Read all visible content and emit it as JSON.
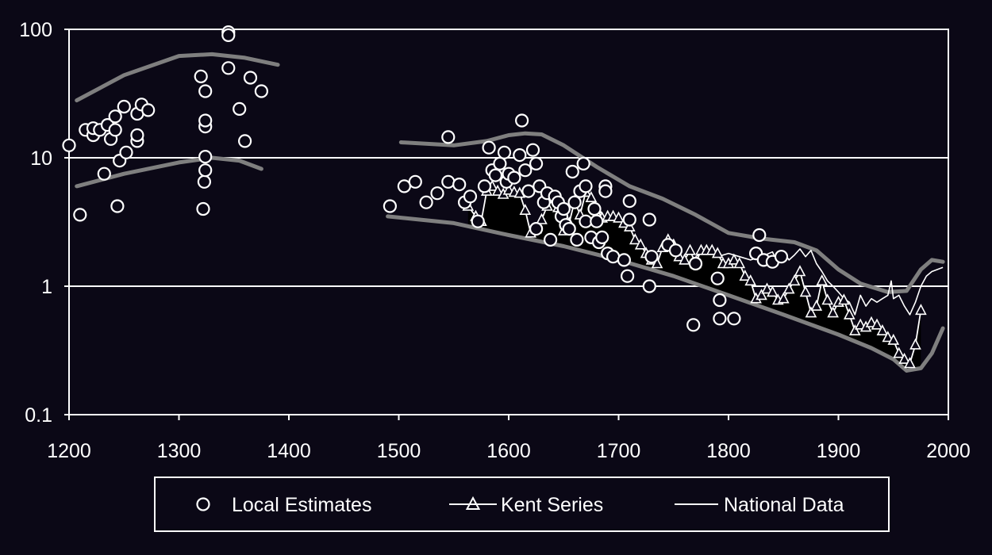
{
  "chart_data": {
    "type": "scatter",
    "title": "",
    "xlabel": "",
    "ylabel": "",
    "xlim": [
      1200,
      2000
    ],
    "ylim": [
      0.1,
      100
    ],
    "yscale": "log",
    "grid": "horizontal",
    "legend_placement": "bottom",
    "x_ticks": [
      "1200",
      "1300",
      "1400",
      "1500",
      "1600",
      "1700",
      "1800",
      "1900",
      "2000"
    ],
    "y_ticks": [
      {
        "value": 0.1,
        "label": "0.1"
      },
      {
        "value": 1,
        "label": "1"
      },
      {
        "value": 10,
        "label": "10"
      },
      {
        "value": 100,
        "label": "100"
      }
    ],
    "colors": {
      "background": "#0b0816",
      "foreground": "#ffffff",
      "band": "#7f7f7f"
    },
    "legend": [
      {
        "marker": "circle",
        "label": "Local Estimates"
      },
      {
        "marker": "triangle-line",
        "label": "Kent Series"
      },
      {
        "marker": "line",
        "label": "National Data"
      }
    ],
    "series": [
      {
        "name": "Local Estimates",
        "kind": "scatter",
        "marker": "circle",
        "points": [
          [
            1200,
            12.5
          ],
          [
            1210,
            3.6
          ],
          [
            1215,
            16.5
          ],
          [
            1222,
            15
          ],
          [
            1222,
            17
          ],
          [
            1228,
            16.5
          ],
          [
            1232,
            7.5
          ],
          [
            1235,
            18
          ],
          [
            1238,
            14
          ],
          [
            1242,
            21
          ],
          [
            1242,
            16.5
          ],
          [
            1244,
            4.2
          ],
          [
            1246,
            9.5
          ],
          [
            1250,
            25
          ],
          [
            1252,
            11
          ],
          [
            1262,
            13.5
          ],
          [
            1262,
            15
          ],
          [
            1262,
            22
          ],
          [
            1266,
            26
          ],
          [
            1272,
            23.5
          ],
          [
            1320,
            43
          ],
          [
            1322,
            4.0
          ],
          [
            1323,
            6.5
          ],
          [
            1324,
            8.0
          ],
          [
            1324,
            10.2
          ],
          [
            1324,
            17.5
          ],
          [
            1324,
            19.5
          ],
          [
            1324,
            33
          ],
          [
            1345,
            95
          ],
          [
            1345,
            90
          ],
          [
            1345,
            50
          ],
          [
            1355,
            24
          ],
          [
            1360,
            13.5
          ],
          [
            1365,
            42
          ],
          [
            1375,
            33
          ],
          [
            1492,
            4.2
          ],
          [
            1505,
            6.0
          ],
          [
            1515,
            6.5
          ],
          [
            1525,
            4.5
          ],
          [
            1535,
            5.3
          ],
          [
            1545,
            14.5
          ],
          [
            1545,
            6.5
          ],
          [
            1555,
            6.2
          ],
          [
            1560,
            4.5
          ],
          [
            1565,
            5.0
          ],
          [
            1572,
            3.2
          ],
          [
            1578,
            6.0
          ],
          [
            1582,
            12.0
          ],
          [
            1585,
            8.0
          ],
          [
            1588,
            7.3
          ],
          [
            1592,
            9.0
          ],
          [
            1596,
            11.0
          ],
          [
            1598,
            6.5
          ],
          [
            1600,
            7.5
          ],
          [
            1605,
            7.0
          ],
          [
            1610,
            10.5
          ],
          [
            1612,
            19.5
          ],
          [
            1615,
            8.0
          ],
          [
            1618,
            5.5
          ],
          [
            1622,
            11.5
          ],
          [
            1625,
            9.0
          ],
          [
            1625,
            2.8
          ],
          [
            1628,
            6.0
          ],
          [
            1632,
            4.5
          ],
          [
            1635,
            5.3
          ],
          [
            1638,
            2.3
          ],
          [
            1642,
            5.0
          ],
          [
            1645,
            4.5
          ],
          [
            1648,
            3.5
          ],
          [
            1650,
            4.0
          ],
          [
            1652,
            3.0
          ],
          [
            1655,
            2.8
          ],
          [
            1658,
            7.8
          ],
          [
            1660,
            4.5
          ],
          [
            1662,
            2.3
          ],
          [
            1665,
            5.5
          ],
          [
            1668,
            9.0
          ],
          [
            1670,
            6.0
          ],
          [
            1670,
            3.2
          ],
          [
            1675,
            2.4
          ],
          [
            1678,
            4.0
          ],
          [
            1680,
            3.2
          ],
          [
            1682,
            2.2
          ],
          [
            1685,
            2.4
          ],
          [
            1688,
            6.0
          ],
          [
            1688,
            5.5
          ],
          [
            1690,
            1.8
          ],
          [
            1695,
            1.7
          ],
          [
            1705,
            1.6
          ],
          [
            1708,
            1.2
          ],
          [
            1710,
            4.6
          ],
          [
            1710,
            3.3
          ],
          [
            1728,
            3.3
          ],
          [
            1728,
            1.0
          ],
          [
            1730,
            1.7
          ],
          [
            1745,
            2.1
          ],
          [
            1752,
            1.9
          ],
          [
            1768,
            0.5
          ],
          [
            1770,
            1.5
          ],
          [
            1790,
            1.15
          ],
          [
            1792,
            0.78
          ],
          [
            1792,
            0.56
          ],
          [
            1805,
            0.56
          ],
          [
            1825,
            1.8
          ],
          [
            1828,
            2.5
          ],
          [
            1832,
            1.6
          ],
          [
            1840,
            1.55
          ],
          [
            1848,
            1.7
          ]
        ]
      },
      {
        "name": "Kent Series",
        "kind": "line",
        "marker": "triangle",
        "points": [
          [
            1563,
            4.2
          ],
          [
            1570,
            3.5
          ],
          [
            1575,
            3.2
          ],
          [
            1580,
            5.5
          ],
          [
            1585,
            6.0
          ],
          [
            1590,
            5.5
          ],
          [
            1595,
            5.2
          ],
          [
            1600,
            5.6
          ],
          [
            1605,
            5.4
          ],
          [
            1610,
            5.3
          ],
          [
            1615,
            3.9
          ],
          [
            1620,
            2.6
          ],
          [
            1625,
            2.8
          ],
          [
            1630,
            3.3
          ],
          [
            1635,
            4.2
          ],
          [
            1640,
            4.8
          ],
          [
            1645,
            4.1
          ],
          [
            1650,
            2.7
          ],
          [
            1655,
            3.1
          ],
          [
            1660,
            4.6
          ],
          [
            1665,
            3.6
          ],
          [
            1670,
            5.4
          ],
          [
            1675,
            4.9
          ],
          [
            1680,
            4.0
          ],
          [
            1685,
            3.4
          ],
          [
            1690,
            3.5
          ],
          [
            1695,
            3.5
          ],
          [
            1700,
            3.4
          ],
          [
            1705,
            3.1
          ],
          [
            1710,
            2.9
          ],
          [
            1715,
            2.3
          ],
          [
            1720,
            2.1
          ],
          [
            1725,
            1.8
          ],
          [
            1730,
            1.6
          ],
          [
            1735,
            1.5
          ],
          [
            1740,
            2.0
          ],
          [
            1745,
            2.3
          ],
          [
            1750,
            2.1
          ],
          [
            1755,
            1.7
          ],
          [
            1760,
            1.6
          ],
          [
            1765,
            1.9
          ],
          [
            1770,
            1.5
          ],
          [
            1775,
            1.9
          ],
          [
            1780,
            1.9
          ],
          [
            1785,
            1.9
          ],
          [
            1790,
            1.8
          ],
          [
            1795,
            1.5
          ],
          [
            1800,
            1.5
          ],
          [
            1805,
            1.6
          ],
          [
            1810,
            1.5
          ],
          [
            1815,
            1.2
          ],
          [
            1820,
            1.1
          ],
          [
            1825,
            0.8
          ],
          [
            1830,
            0.85
          ],
          [
            1835,
            0.95
          ],
          [
            1840,
            0.9
          ],
          [
            1845,
            0.78
          ],
          [
            1850,
            0.8
          ],
          [
            1855,
            0.95
          ],
          [
            1860,
            1.1
          ],
          [
            1865,
            1.3
          ],
          [
            1870,
            0.9
          ],
          [
            1875,
            0.62
          ],
          [
            1880,
            0.7
          ],
          [
            1885,
            1.1
          ],
          [
            1890,
            0.78
          ],
          [
            1895,
            0.62
          ],
          [
            1900,
            0.75
          ],
          [
            1905,
            0.78
          ],
          [
            1910,
            0.6
          ],
          [
            1915,
            0.45
          ],
          [
            1920,
            0.5
          ],
          [
            1925,
            0.48
          ],
          [
            1930,
            0.52
          ],
          [
            1935,
            0.5
          ],
          [
            1940,
            0.45
          ],
          [
            1945,
            0.4
          ],
          [
            1950,
            0.38
          ],
          [
            1955,
            0.3
          ],
          [
            1960,
            0.27
          ],
          [
            1965,
            0.25
          ],
          [
            1970,
            0.35
          ],
          [
            1975,
            0.65
          ]
        ]
      },
      {
        "name": "National Data",
        "kind": "line",
        "marker": "none",
        "points": [
          [
            1770,
            1.7
          ],
          [
            1780,
            1.9
          ],
          [
            1790,
            1.7
          ],
          [
            1800,
            1.8
          ],
          [
            1810,
            1.7
          ],
          [
            1820,
            1.6
          ],
          [
            1830,
            1.7
          ],
          [
            1840,
            1.85
          ],
          [
            1845,
            1.5
          ],
          [
            1850,
            1.85
          ],
          [
            1855,
            1.6
          ],
          [
            1860,
            1.75
          ],
          [
            1865,
            1.95
          ],
          [
            1870,
            1.7
          ],
          [
            1875,
            1.9
          ],
          [
            1880,
            1.5
          ],
          [
            1885,
            1.3
          ],
          [
            1890,
            1.1
          ],
          [
            1895,
            1.0
          ],
          [
            1900,
            0.9
          ],
          [
            1905,
            0.8
          ],
          [
            1910,
            0.75
          ],
          [
            1915,
            0.6
          ],
          [
            1920,
            0.85
          ],
          [
            1925,
            0.7
          ],
          [
            1930,
            0.8
          ],
          [
            1935,
            0.75
          ],
          [
            1940,
            0.8
          ],
          [
            1945,
            0.85
          ],
          [
            1948,
            1.1
          ],
          [
            1950,
            0.8
          ],
          [
            1955,
            0.85
          ],
          [
            1960,
            0.7
          ],
          [
            1965,
            0.6
          ],
          [
            1970,
            0.75
          ],
          [
            1975,
            1.0
          ],
          [
            1980,
            1.2
          ],
          [
            1985,
            1.3
          ],
          [
            1990,
            1.35
          ],
          [
            1995,
            1.4
          ]
        ]
      },
      {
        "name": "band-upper-medieval",
        "kind": "band",
        "points": [
          [
            1207,
            28
          ],
          [
            1250,
            44
          ],
          [
            1300,
            62
          ],
          [
            1330,
            64
          ],
          [
            1360,
            60
          ],
          [
            1390,
            53
          ]
        ]
      },
      {
        "name": "band-lower-medieval",
        "kind": "band",
        "points": [
          [
            1207,
            6.0
          ],
          [
            1250,
            7.5
          ],
          [
            1300,
            9.2
          ],
          [
            1330,
            10
          ],
          [
            1355,
            9.5
          ],
          [
            1375,
            8.2
          ]
        ]
      },
      {
        "name": "band-upper-modern",
        "kind": "band",
        "points": [
          [
            1502,
            13.2
          ],
          [
            1550,
            12.5
          ],
          [
            1580,
            13.5
          ],
          [
            1600,
            15.0
          ],
          [
            1615,
            15.5
          ],
          [
            1630,
            15.2
          ],
          [
            1650,
            12.5
          ],
          [
            1680,
            8.5
          ],
          [
            1710,
            6.0
          ],
          [
            1740,
            4.8
          ],
          [
            1770,
            3.6
          ],
          [
            1800,
            2.6
          ],
          [
            1830,
            2.35
          ],
          [
            1860,
            2.2
          ],
          [
            1880,
            1.9
          ],
          [
            1900,
            1.35
          ],
          [
            1920,
            1.05
          ],
          [
            1945,
            0.9
          ],
          [
            1962,
            0.92
          ],
          [
            1975,
            1.35
          ],
          [
            1985,
            1.6
          ],
          [
            1995,
            1.55
          ]
        ]
      },
      {
        "name": "band-lower-modern",
        "kind": "band",
        "points": [
          [
            1490,
            3.5
          ],
          [
            1550,
            3.1
          ],
          [
            1600,
            2.5
          ],
          [
            1650,
            2.05
          ],
          [
            1700,
            1.6
          ],
          [
            1750,
            1.2
          ],
          [
            1800,
            0.85
          ],
          [
            1850,
            0.6
          ],
          [
            1900,
            0.42
          ],
          [
            1930,
            0.33
          ],
          [
            1950,
            0.27
          ],
          [
            1962,
            0.22
          ],
          [
            1975,
            0.23
          ],
          [
            1985,
            0.3
          ],
          [
            1995,
            0.47
          ]
        ]
      }
    ]
  }
}
